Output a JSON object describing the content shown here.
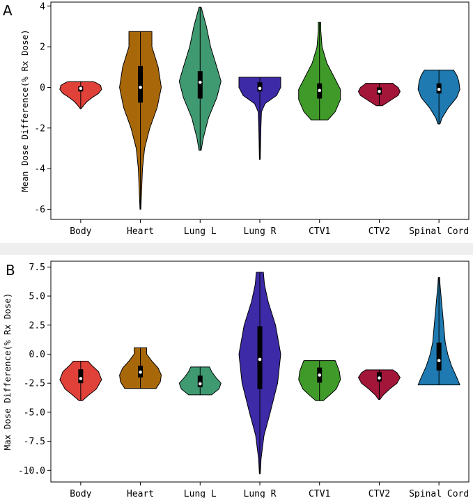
{
  "chart_data": [
    {
      "type": "violin",
      "panel_label": "A",
      "title": "",
      "xlabel": "",
      "ylabel": "Mean Dose Difference(% Rx Dose)",
      "categories": [
        "Body",
        "Heart",
        "Lung L",
        "Lung R",
        "CTV1",
        "CTV2",
        "Spinal Cord"
      ],
      "colors": [
        "#e0423a",
        "#a8680a",
        "#3f9a72",
        "#3c2aa6",
        "#3f9a2a",
        "#a3163a",
        "#1e7ab0"
      ],
      "ylim": [
        -6.5,
        4.2
      ],
      "yticks": [
        -6,
        -4,
        -2,
        0,
        2,
        4
      ],
      "grid": false,
      "series": [
        {
          "name": "Body",
          "min": -1.05,
          "q1": -0.2,
          "median": -0.05,
          "q3": 0.05,
          "max": 0.28,
          "profile": [
            [
              -1.05,
              0.02
            ],
            [
              -0.9,
              0.13
            ],
            [
              -0.7,
              0.3
            ],
            [
              -0.5,
              0.55
            ],
            [
              -0.3,
              0.85
            ],
            [
              -0.1,
              1.0
            ],
            [
              0.1,
              0.95
            ],
            [
              0.25,
              0.7
            ],
            [
              0.28,
              0.6
            ]
          ]
        },
        {
          "name": "Heart",
          "min": -6.0,
          "q1": -0.75,
          "median": 0.0,
          "q3": 1.05,
          "max": 2.75,
          "profile": [
            [
              -6.0,
              0.02
            ],
            [
              -5.0,
              0.06
            ],
            [
              -4.0,
              0.1
            ],
            [
              -3.0,
              0.2
            ],
            [
              -2.0,
              0.45
            ],
            [
              -1.0,
              0.8
            ],
            [
              0.0,
              1.0
            ],
            [
              1.0,
              0.85
            ],
            [
              2.0,
              0.55
            ],
            [
              2.75,
              0.55
            ]
          ]
        },
        {
          "name": "Lung L",
          "min": -3.1,
          "q1": -0.55,
          "median": 0.25,
          "q3": 0.8,
          "max": 3.95,
          "profile": [
            [
              -3.1,
              0.05
            ],
            [
              -2.5,
              0.15
            ],
            [
              -1.5,
              0.4
            ],
            [
              -0.5,
              0.8
            ],
            [
              0.3,
              1.0
            ],
            [
              1.0,
              0.8
            ],
            [
              2.0,
              0.5
            ],
            [
              3.0,
              0.3
            ],
            [
              3.95,
              0.05
            ]
          ]
        },
        {
          "name": "Lung R",
          "min": -3.55,
          "q1": -0.2,
          "median": -0.05,
          "q3": 0.25,
          "max": 0.5,
          "profile": [
            [
              -3.55,
              0.02
            ],
            [
              -3.0,
              0.03
            ],
            [
              -2.0,
              0.05
            ],
            [
              -1.2,
              0.08
            ],
            [
              -0.8,
              0.25
            ],
            [
              -0.4,
              0.8
            ],
            [
              0.0,
              1.0
            ],
            [
              0.3,
              1.0
            ],
            [
              0.5,
              1.0
            ]
          ]
        },
        {
          "name": "CTV1",
          "min": -1.6,
          "q1": -0.55,
          "median": -0.15,
          "q3": 0.2,
          "max": 3.2,
          "profile": [
            [
              -1.6,
              0.4
            ],
            [
              -1.2,
              0.75
            ],
            [
              -0.6,
              1.0
            ],
            [
              -0.1,
              1.0
            ],
            [
              0.5,
              0.7
            ],
            [
              1.2,
              0.35
            ],
            [
              2.0,
              0.12
            ],
            [
              2.8,
              0.06
            ],
            [
              3.2,
              0.06
            ]
          ]
        },
        {
          "name": "CTV2",
          "min": -0.9,
          "q1": -0.35,
          "median": -0.2,
          "q3": 0.0,
          "max": 0.2,
          "profile": [
            [
              -0.9,
              0.15
            ],
            [
              -0.7,
              0.45
            ],
            [
              -0.4,
              0.9
            ],
            [
              -0.2,
              1.0
            ],
            [
              0.0,
              0.9
            ],
            [
              0.15,
              0.7
            ],
            [
              0.2,
              0.65
            ]
          ]
        },
        {
          "name": "Spinal Cord",
          "min": -1.8,
          "q1": -0.3,
          "median": -0.1,
          "q3": 0.2,
          "max": 0.85,
          "profile": [
            [
              -1.8,
              0.05
            ],
            [
              -1.5,
              0.15
            ],
            [
              -1.0,
              0.45
            ],
            [
              -0.5,
              0.85
            ],
            [
              -0.1,
              1.0
            ],
            [
              0.3,
              0.95
            ],
            [
              0.6,
              0.85
            ],
            [
              0.85,
              0.7
            ]
          ]
        }
      ]
    },
    {
      "type": "violin",
      "panel_label": "B",
      "title": "",
      "xlabel": "",
      "ylabel": "Max Dose Difference(% Rx Dose)",
      "categories": [
        "Body",
        "Heart",
        "Lung L",
        "Lung R",
        "CTV1",
        "CTV2",
        "Spinal Cord"
      ],
      "colors": [
        "#e0423a",
        "#a8680a",
        "#3f9a72",
        "#3c2aa6",
        "#3f9a2a",
        "#a3163a",
        "#1e7ab0"
      ],
      "ylim": [
        -11.0,
        8.0
      ],
      "yticks": [
        -10.0,
        -7.5,
        -5.0,
        -2.5,
        0.0,
        2.5,
        5.0,
        7.5
      ],
      "ytick_labels": [
        "-10.0",
        "-7.5",
        "-5.0",
        "-2.5",
        "0.0",
        "2.5",
        "5.0",
        "7.5"
      ],
      "grid": false,
      "series": [
        {
          "name": "Body",
          "min": -4.0,
          "q1": -2.5,
          "median": -2.1,
          "q3": -1.3,
          "max": -0.6,
          "profile": [
            [
              -4.0,
              0.08
            ],
            [
              -3.5,
              0.4
            ],
            [
              -3.0,
              0.75
            ],
            [
              -2.2,
              1.0
            ],
            [
              -1.5,
              0.85
            ],
            [
              -1.0,
              0.55
            ],
            [
              -0.6,
              0.35
            ]
          ]
        },
        {
          "name": "Heart",
          "min": -2.95,
          "q1": -2.0,
          "median": -1.55,
          "q3": -1.0,
          "max": 0.55,
          "profile": [
            [
              -2.95,
              0.75
            ],
            [
              -2.4,
              0.95
            ],
            [
              -1.8,
              1.0
            ],
            [
              -1.2,
              0.85
            ],
            [
              -0.6,
              0.55
            ],
            [
              0.0,
              0.3
            ],
            [
              0.55,
              0.3
            ]
          ]
        },
        {
          "name": "Lung L",
          "min": -3.5,
          "q1": -2.85,
          "median": -2.55,
          "q3": -1.85,
          "max": -1.1,
          "profile": [
            [
              -3.5,
              0.55
            ],
            [
              -3.0,
              0.9
            ],
            [
              -2.5,
              1.0
            ],
            [
              -2.0,
              0.75
            ],
            [
              -1.5,
              0.55
            ],
            [
              -1.1,
              0.45
            ]
          ]
        },
        {
          "name": "Lung R",
          "min": -10.3,
          "q1": -3.0,
          "median": -0.45,
          "q3": 2.4,
          "max": 7.05,
          "profile": [
            [
              -10.3,
              0.02
            ],
            [
              -9.0,
              0.06
            ],
            [
              -7.0,
              0.2
            ],
            [
              -5.0,
              0.5
            ],
            [
              -2.5,
              0.85
            ],
            [
              0.0,
              1.0
            ],
            [
              2.5,
              0.75
            ],
            [
              4.5,
              0.4
            ],
            [
              6.0,
              0.22
            ],
            [
              7.05,
              0.17
            ]
          ]
        },
        {
          "name": "CTV1",
          "min": -4.0,
          "q1": -2.45,
          "median": -1.8,
          "q3": -1.15,
          "max": -0.55,
          "profile": [
            [
              -4.0,
              0.18
            ],
            [
              -3.5,
              0.5
            ],
            [
              -3.0,
              0.8
            ],
            [
              -2.2,
              1.0
            ],
            [
              -1.5,
              0.95
            ],
            [
              -1.0,
              0.85
            ],
            [
              -0.55,
              0.75
            ]
          ]
        },
        {
          "name": "CTV2",
          "min": -3.9,
          "q1": -2.35,
          "median": -2.05,
          "q3": -1.55,
          "max": -1.35,
          "profile": [
            [
              -3.9,
              0.03
            ],
            [
              -3.5,
              0.2
            ],
            [
              -3.0,
              0.5
            ],
            [
              -2.5,
              0.85
            ],
            [
              -2.0,
              1.0
            ],
            [
              -1.6,
              0.85
            ],
            [
              -1.35,
              0.65
            ]
          ]
        },
        {
          "name": "Spinal Cord",
          "min": -2.65,
          "q1": -1.4,
          "median": -0.55,
          "q3": 1.0,
          "max": 6.6,
          "profile": [
            [
              -2.65,
              1.0
            ],
            [
              -2.0,
              0.85
            ],
            [
              -1.0,
              0.6
            ],
            [
              0.0,
              0.42
            ],
            [
              1.0,
              0.3
            ],
            [
              2.0,
              0.25
            ],
            [
              3.0,
              0.2
            ],
            [
              4.0,
              0.15
            ],
            [
              5.0,
              0.1
            ],
            [
              6.0,
              0.05
            ],
            [
              6.6,
              0.03
            ]
          ]
        }
      ]
    }
  ]
}
